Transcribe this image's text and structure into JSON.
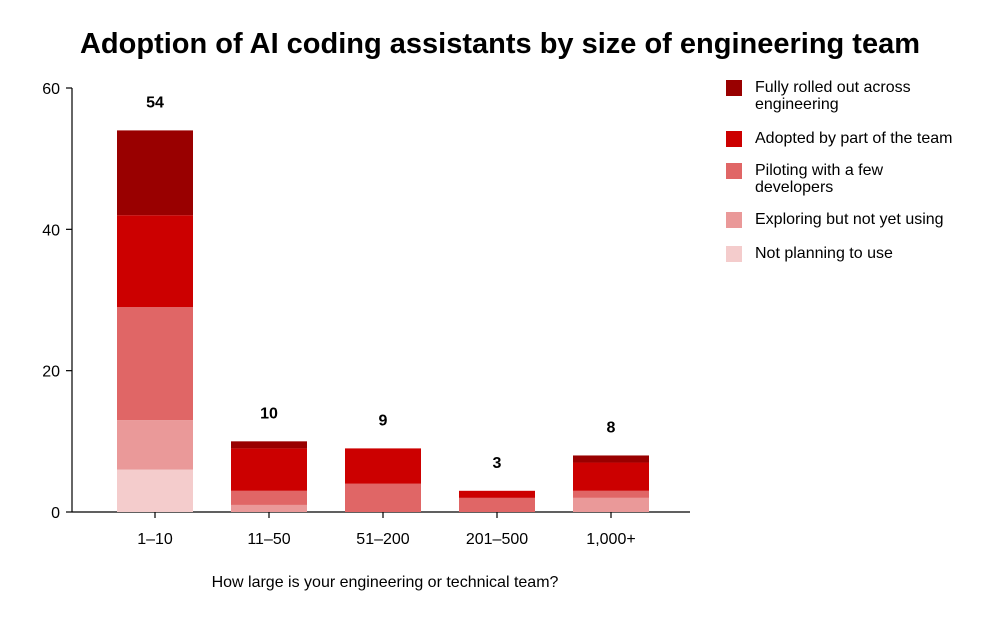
{
  "chart_data": {
    "type": "bar",
    "stacked": true,
    "title": "Adoption of AI coding assistants by size of engineering team",
    "xlabel": "How large is your engineering or technical team?",
    "ylabel": "",
    "ylim": [
      0,
      60
    ],
    "yticks": [
      0,
      20,
      40,
      60
    ],
    "grid": false,
    "legend_position": "right",
    "categories": [
      "1–10",
      "11–50",
      "51–200",
      "201–500",
      "1,000+"
    ],
    "totals": [
      54,
      10,
      9,
      3,
      8
    ],
    "series": [
      {
        "name": "Not planning to use",
        "color": "#f4cccc",
        "values": [
          6,
          0,
          0,
          0,
          0
        ]
      },
      {
        "name": "Exploring but not yet using",
        "color": "#ea9999",
        "values": [
          7,
          1,
          0,
          0,
          2
        ]
      },
      {
        "name": "Piloting with a few developers",
        "color": "#e06666",
        "values": [
          16,
          2,
          4,
          2,
          1
        ]
      },
      {
        "name": "Adopted by part of the team",
        "color": "#cc0000",
        "values": [
          13,
          6,
          5,
          1,
          4
        ]
      },
      {
        "name": "Fully rolled out across engineering",
        "color": "#990000",
        "values": [
          12,
          1,
          0,
          0,
          1
        ]
      }
    ],
    "legend": [
      {
        "lines": [
          "Fully rolled out across",
          "engineering"
        ],
        "color": "#990000"
      },
      {
        "lines": [
          "Adopted by part of the team"
        ],
        "color": "#cc0000"
      },
      {
        "lines": [
          "Piloting with a few",
          "developers"
        ],
        "color": "#e06666"
      },
      {
        "lines": [
          "Exploring but not yet using"
        ],
        "color": "#ea9999"
      },
      {
        "lines": [
          "Not planning to use"
        ],
        "color": "#f4cccc"
      }
    ]
  }
}
